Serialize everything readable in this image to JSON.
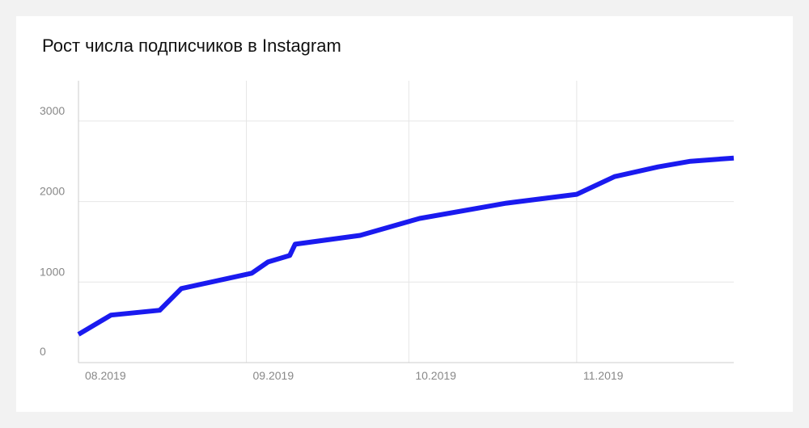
{
  "chart_data": {
    "type": "line",
    "title": "Рост числа подписчиков в Instagram",
    "xlabel": "",
    "ylabel": "",
    "x_ticks": [
      "08.2019",
      "09.2019",
      "10.2019",
      "11.2019"
    ],
    "x_range": [
      "2019-08-01",
      "2019-11-30"
    ],
    "ylim": [
      0,
      3500
    ],
    "y_ticks": [
      0,
      1000,
      2000,
      3000
    ],
    "grid": true,
    "legend": "none",
    "series": [
      {
        "color": "#1a1aef",
        "points": [
          {
            "x": "2019-08-01",
            "y": 350
          },
          {
            "x": "2019-08-07",
            "y": 590
          },
          {
            "x": "2019-08-16",
            "y": 650
          },
          {
            "x": "2019-08-20",
            "y": 920
          },
          {
            "x": "2019-09-02",
            "y": 1110
          },
          {
            "x": "2019-09-05",
            "y": 1250
          },
          {
            "x": "2019-09-09",
            "y": 1330
          },
          {
            "x": "2019-09-10",
            "y": 1470
          },
          {
            "x": "2019-09-22",
            "y": 1580
          },
          {
            "x": "2019-10-03",
            "y": 1790
          },
          {
            "x": "2019-10-19",
            "y": 1980
          },
          {
            "x": "2019-11-01",
            "y": 2090
          },
          {
            "x": "2019-11-08",
            "y": 2310
          },
          {
            "x": "2019-11-16",
            "y": 2430
          },
          {
            "x": "2019-11-22",
            "y": 2500
          },
          {
            "x": "2019-11-30",
            "y": 2540
          }
        ]
      }
    ]
  }
}
